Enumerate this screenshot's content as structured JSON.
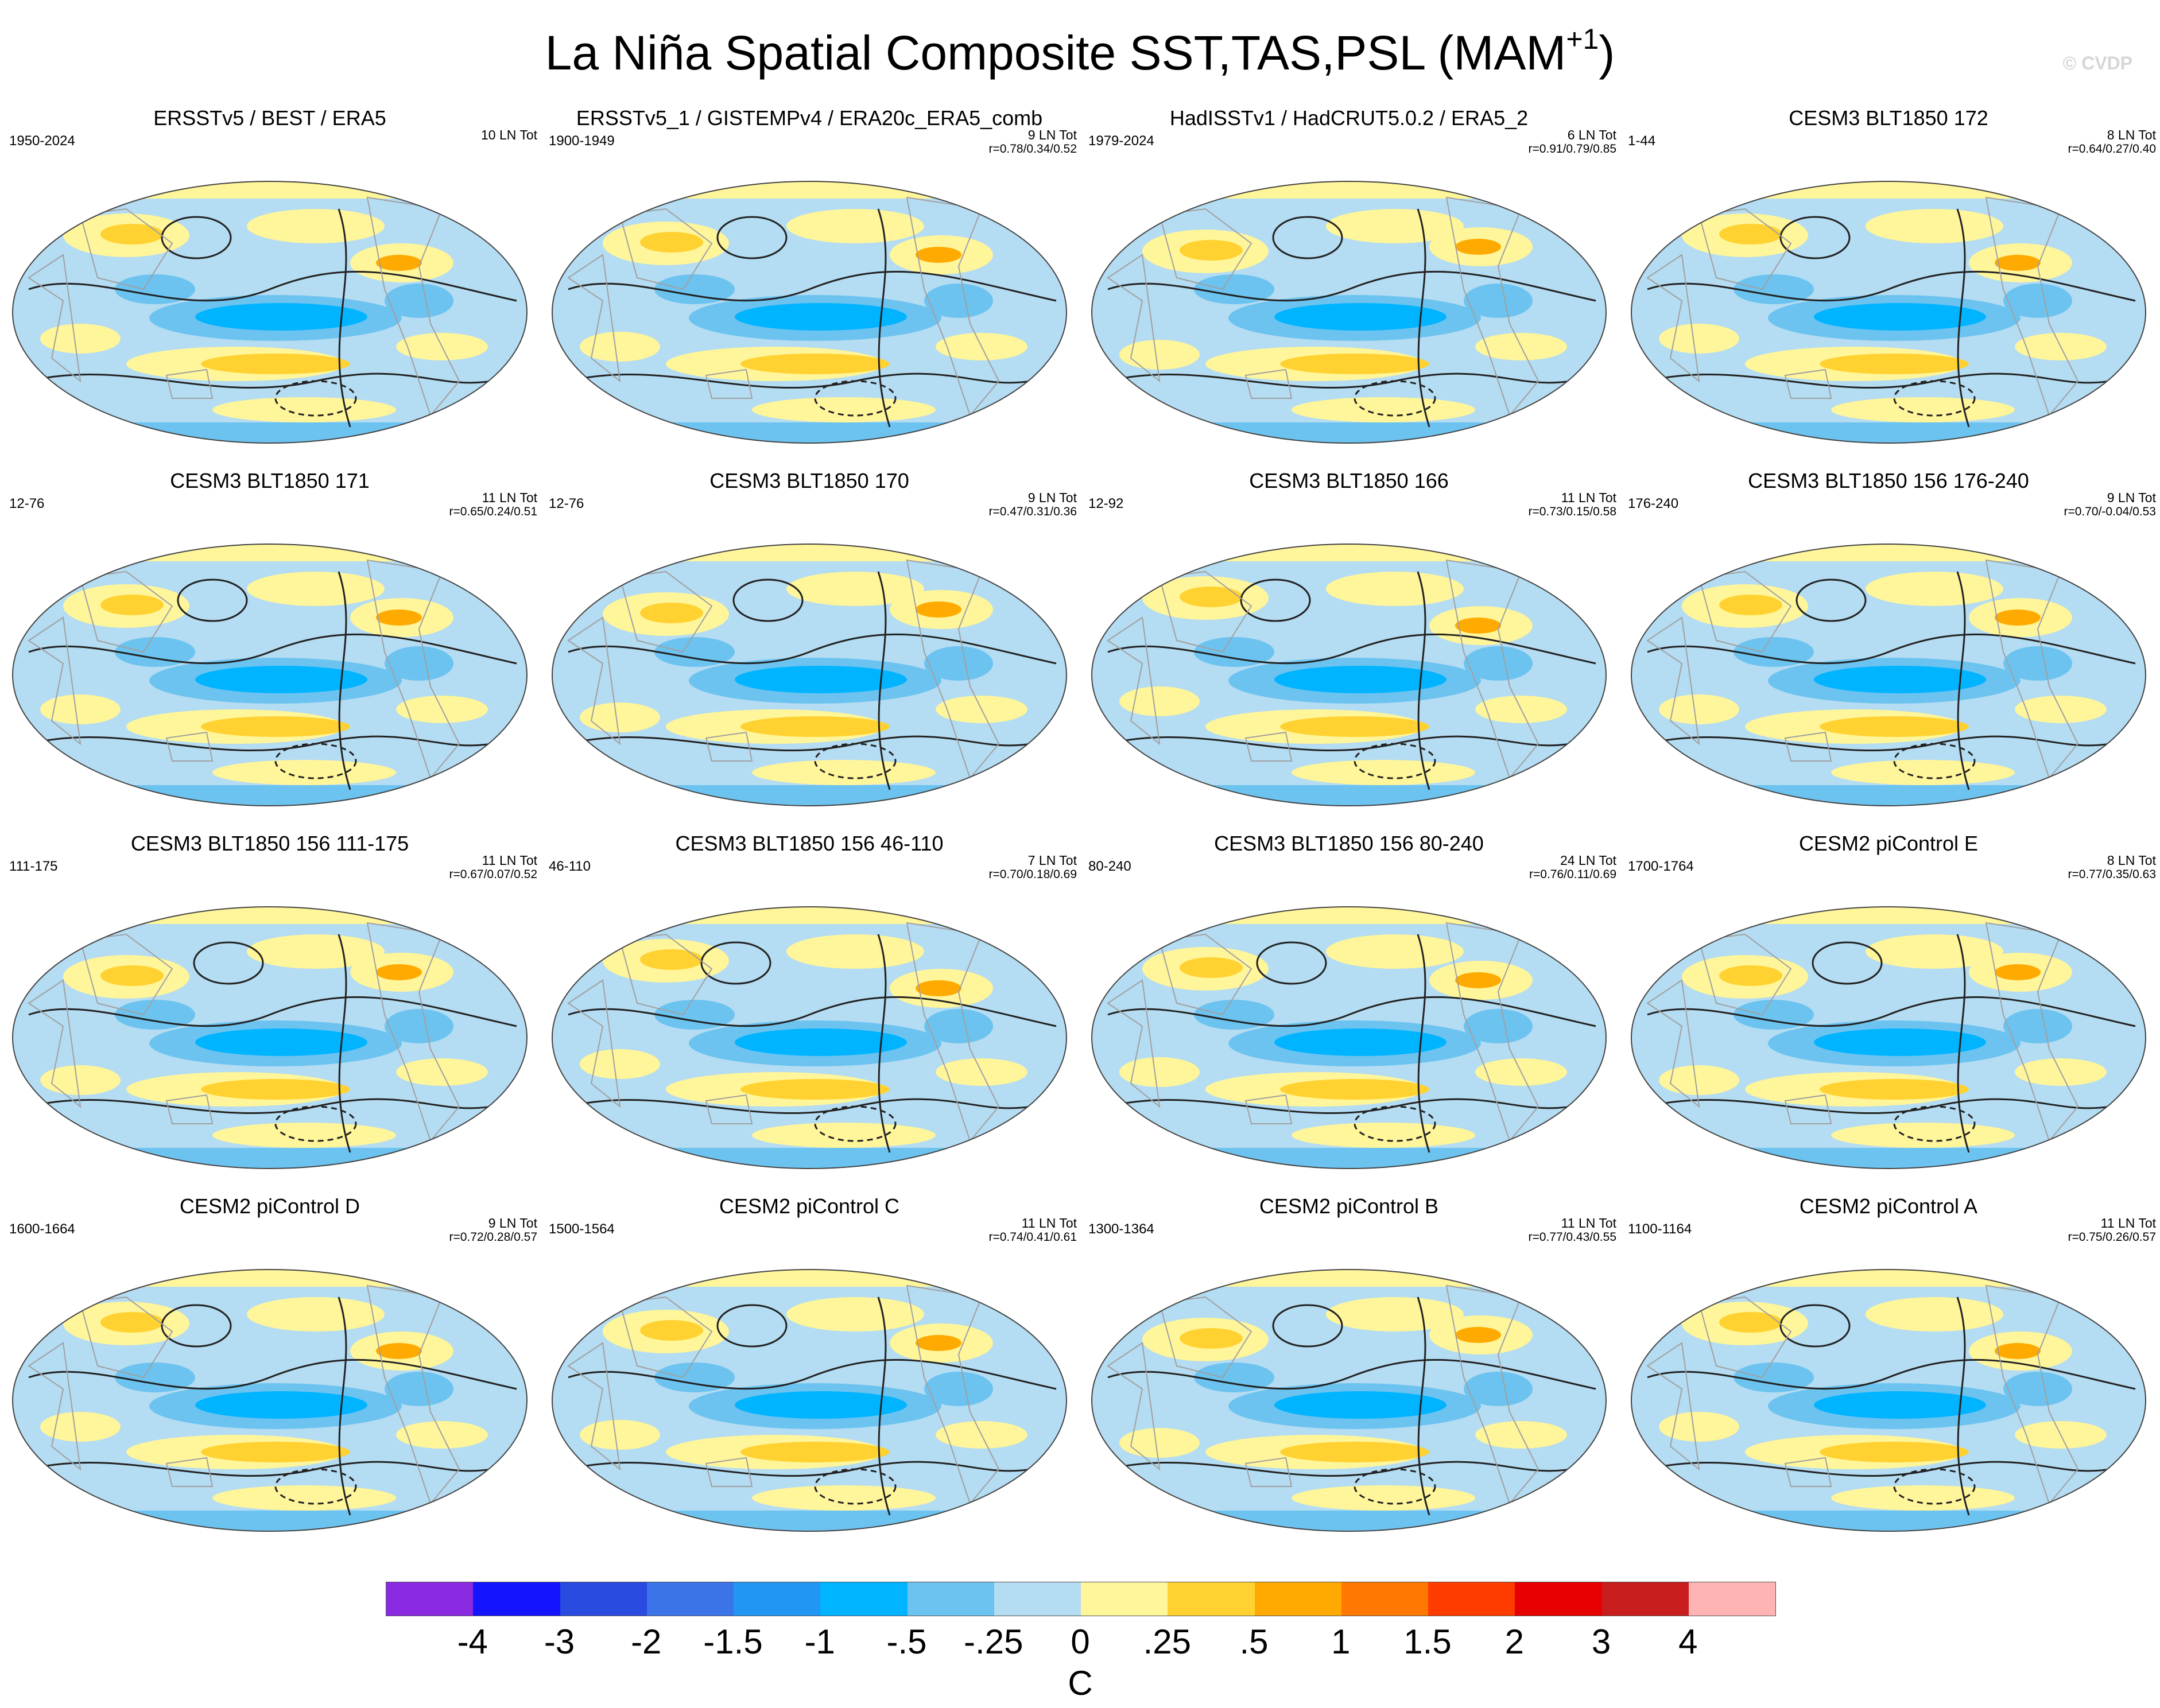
{
  "title": "La Niña Spatial Composite SST,TAS,PSL (MAM",
  "title_superscript": "+1",
  "title_close": ")",
  "copyright": "© CVDP",
  "panels": [
    {
      "title": "ERSSTv5 / BEST / ERA5",
      "period": "1950-2024",
      "count": "10 LN Tot",
      "r": ""
    },
    {
      "title": "ERSSTv5_1 / GISTEMPv4 / ERA20c_ERA5_comb",
      "period": "1900-1949",
      "count": "9 LN Tot",
      "r": "r=0.78/0.34/0.52"
    },
    {
      "title": "HadISSTv1 / HadCRUT5.0.2 / ERA5_2",
      "period": "1979-2024",
      "count": "6 LN Tot",
      "r": "r=0.91/0.79/0.85"
    },
    {
      "title": "CESM3 BLT1850 172",
      "period": "1-44",
      "count": "8 LN Tot",
      "r": "r=0.64/0.27/0.40"
    },
    {
      "title": "CESM3 BLT1850 171",
      "period": "12-76",
      "count": "11 LN Tot",
      "r": "r=0.65/0.24/0.51"
    },
    {
      "title": "CESM3 BLT1850 170",
      "period": "12-76",
      "count": "9 LN Tot",
      "r": "r=0.47/0.31/0.36"
    },
    {
      "title": "CESM3 BLT1850 166",
      "period": "12-92",
      "count": "11 LN Tot",
      "r": "r=0.73/0.15/0.58"
    },
    {
      "title": "CESM3 BLT1850 156 176-240",
      "period": "176-240",
      "count": "9 LN Tot",
      "r": "r=0.70/-0.04/0.53"
    },
    {
      "title": "CESM3 BLT1850 156 111-175",
      "period": "111-175",
      "count": "11 LN Tot",
      "r": "r=0.67/0.07/0.52"
    },
    {
      "title": "CESM3 BLT1850 156 46-110",
      "period": "46-110",
      "count": "7 LN Tot",
      "r": "r=0.70/0.18/0.69"
    },
    {
      "title": "CESM3 BLT1850 156 80-240",
      "period": "80-240",
      "count": "24 LN Tot",
      "r": "r=0.76/0.11/0.69"
    },
    {
      "title": "CESM2 piControl E",
      "period": "1700-1764",
      "count": "8 LN Tot",
      "r": "r=0.77/0.35/0.63"
    },
    {
      "title": "CESM2 piControl D",
      "period": "1600-1664",
      "count": "9 LN Tot",
      "r": "r=0.72/0.28/0.57"
    },
    {
      "title": "CESM2 piControl C",
      "period": "1500-1564",
      "count": "11 LN Tot",
      "r": "r=0.74/0.41/0.61"
    },
    {
      "title": "CESM2 piControl B",
      "period": "1300-1364",
      "count": "11 LN Tot",
      "r": "r=0.77/0.43/0.55"
    },
    {
      "title": "CESM2 piControl A",
      "period": "1100-1164",
      "count": "11 LN Tot",
      "r": "r=0.75/0.26/0.57"
    }
  ],
  "chart_data": {
    "type": "heatmap",
    "projection": "Robinson (global)",
    "fields": [
      "SST",
      "TAS",
      "PSL (contours)"
    ],
    "season": "MAM+1",
    "colorbar": {
      "units": "C",
      "tick_labels": [
        "-4",
        "-3",
        "-2",
        "-1.5",
        "-1",
        "-.5",
        "-.25",
        "0",
        ".25",
        ".5",
        "1",
        "1.5",
        "2",
        "3",
        "4"
      ],
      "colors": [
        "#8a2be2",
        "#1414ff",
        "#2a4bdf",
        "#3b74e8",
        "#2196f3",
        "#00b4ff",
        "#6cc3f0",
        "#b4dcf2",
        "#fff59a",
        "#ffd232",
        "#ffaa00",
        "#ff7800",
        "#ff3c00",
        "#e60000",
        "#c81e1e",
        "#ffb4b4"
      ]
    }
  }
}
